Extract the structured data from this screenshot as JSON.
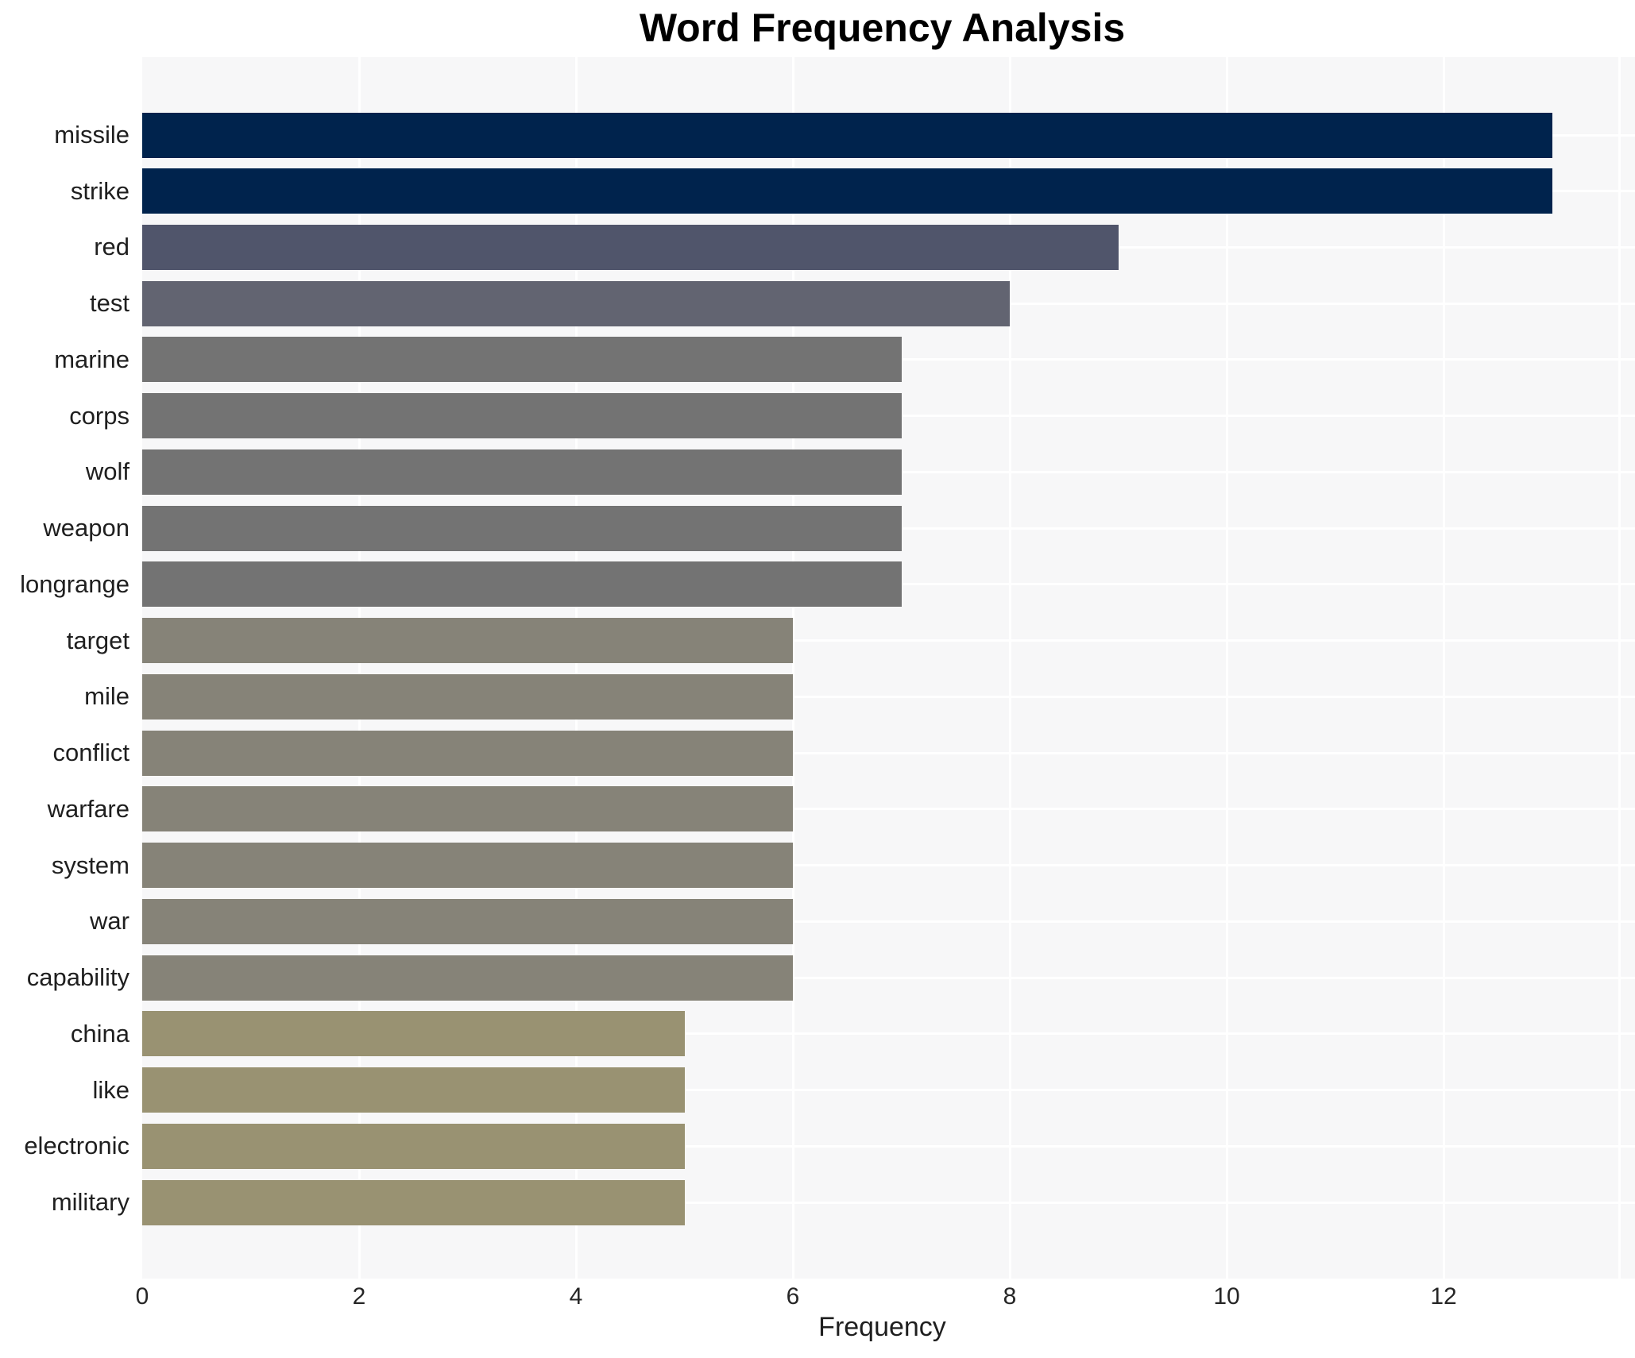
{
  "chart_data": {
    "type": "bar",
    "orientation": "horizontal",
    "title": "Word Frequency Analysis",
    "xlabel": "Frequency",
    "ylabel": "",
    "categories": [
      "missile",
      "strike",
      "red",
      "test",
      "marine",
      "corps",
      "wolf",
      "weapon",
      "longrange",
      "target",
      "mile",
      "conflict",
      "warfare",
      "system",
      "war",
      "capability",
      "china",
      "like",
      "electronic",
      "military"
    ],
    "values": [
      13,
      13,
      9,
      8,
      7,
      7,
      7,
      7,
      7,
      6,
      6,
      6,
      6,
      6,
      6,
      6,
      5,
      5,
      5,
      5
    ],
    "bar_colors": [
      "#00234d",
      "#00234d",
      "#50556b",
      "#626471",
      "#737373",
      "#737373",
      "#737373",
      "#737373",
      "#737373",
      "#868378",
      "#868378",
      "#868378",
      "#868378",
      "#868378",
      "#868378",
      "#868378",
      "#999272",
      "#999272",
      "#999272",
      "#999272"
    ],
    "x_ticks": [
      0,
      2,
      4,
      6,
      8,
      10,
      12
    ],
    "xlim": [
      0,
      13.65
    ],
    "grid": "white gridlines, vertical at even ticks and horizontal at each category",
    "legend_position": "none",
    "plot_bg_color": "#f7f7f8",
    "grid_color": "#ffffff",
    "text_color": "#1f1f1f",
    "title_color": "#000000"
  }
}
